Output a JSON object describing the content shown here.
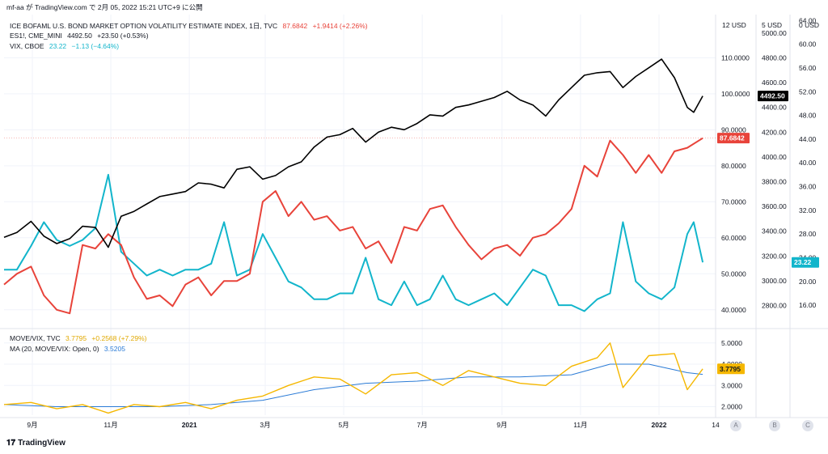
{
  "header": {
    "user": "mf-aa",
    "published_text": "が TradingView.com で 2月 05, 2022 15:21 UTC+9 に公開"
  },
  "legends": [
    {
      "title": "ICE BOFAML U.S. BOND MARKET OPTION VOLATILITY ESTIMATE INDEX, 1日, TVC",
      "value": "87.6842",
      "change": "+1.9414 (+2.26%)",
      "color": "#e8433a"
    },
    {
      "title": "ES1!, CME_MINI",
      "value": "4492.50",
      "change": "+23.50 (+0.53%)",
      "color": "#131722"
    },
    {
      "title": "VIX, CBOE",
      "value": "23.22",
      "change": "−1.13 (−4.64%)",
      "color": "#12b5cb"
    },
    {
      "title": "MOVE/VIX, TVC",
      "value": "3.7795",
      "change": "+0.2568 (+7.29%)",
      "color": "#f5b700"
    },
    {
      "title": "MA (20, MOVE/VIX: Open, 0)",
      "value": "3.5205",
      "change": "",
      "color": "#2b7bd6"
    }
  ],
  "axis_headers": {
    "move": "USD",
    "es": "USD",
    "vix": "USD",
    "move_small": "12",
    "es_small": "5",
    "vix_small": "0"
  },
  "badges": {
    "es": "4492.50",
    "move": "87.6842",
    "vix": "23.22",
    "ratio": "3.7795"
  },
  "colors": {
    "move": "#e8433a",
    "es": "#000000",
    "vix": "#12b5cb",
    "ratio": "#f5b700",
    "ma": "#2b7bd6",
    "grid": "#f0f3fa"
  },
  "scale_buttons": [
    "A",
    "B",
    "C"
  ],
  "brand": "TradingView",
  "chart_data": [
    {
      "type": "line",
      "title": "",
      "x_tick_labels": [
        "9月",
        "11月",
        "2021",
        "3月",
        "5月",
        "7月",
        "9月",
        "11月",
        "2022",
        "14"
      ],
      "x_range": [
        "2020-08-10",
        "2022-02-14"
      ],
      "series": [
        {
          "name": "ICE BOFAML U.S. BOND MARKET OPTION VOLATILITY ESTIMATE INDEX",
          "axis": "move",
          "ylim": [
            35,
            122
          ],
          "ticks": [
            "40.0000",
            "50.0000",
            "60.0000",
            "70.0000",
            "80.0000",
            "90.0000",
            "100.0000",
            "110.0000"
          ],
          "points": [
            [
              "2020-08-10",
              47
            ],
            [
              "2020-08-20",
              50
            ],
            [
              "2020-08-31",
              52
            ],
            [
              "2020-09-10",
              44
            ],
            [
              "2020-09-20",
              40
            ],
            [
              "2020-09-30",
              39
            ],
            [
              "2020-10-10",
              58
            ],
            [
              "2020-10-20",
              57
            ],
            [
              "2020-10-30",
              61
            ],
            [
              "2020-11-09",
              58
            ],
            [
              "2020-11-19",
              49
            ],
            [
              "2020-11-29",
              43
            ],
            [
              "2020-12-09",
              44
            ],
            [
              "2020-12-19",
              41
            ],
            [
              "2020-12-29",
              47
            ],
            [
              "2021-01-08",
              49
            ],
            [
              "2021-01-18",
              44
            ],
            [
              "2021-01-28",
              48
            ],
            [
              "2021-02-07",
              48
            ],
            [
              "2021-02-17",
              50
            ],
            [
              "2021-02-27",
              70
            ],
            [
              "2021-03-09",
              73
            ],
            [
              "2021-03-19",
              66
            ],
            [
              "2021-03-29",
              70
            ],
            [
              "2021-04-08",
              65
            ],
            [
              "2021-04-18",
              66
            ],
            [
              "2021-04-28",
              62
            ],
            [
              "2021-05-08",
              63
            ],
            [
              "2021-05-18",
              57
            ],
            [
              "2021-05-28",
              59
            ],
            [
              "2021-06-07",
              53
            ],
            [
              "2021-06-17",
              63
            ],
            [
              "2021-06-27",
              62
            ],
            [
              "2021-07-07",
              68
            ],
            [
              "2021-07-17",
              69
            ],
            [
              "2021-07-27",
              63
            ],
            [
              "2021-08-06",
              58
            ],
            [
              "2021-08-16",
              54
            ],
            [
              "2021-08-26",
              57
            ],
            [
              "2021-09-05",
              58
            ],
            [
              "2021-09-15",
              55
            ],
            [
              "2021-09-25",
              60
            ],
            [
              "2021-10-05",
              61
            ],
            [
              "2021-10-15",
              64
            ],
            [
              "2021-10-25",
              68
            ],
            [
              "2021-11-04",
              80
            ],
            [
              "2021-11-14",
              77
            ],
            [
              "2021-11-24",
              87
            ],
            [
              "2021-12-04",
              83
            ],
            [
              "2021-12-14",
              78
            ],
            [
              "2021-12-24",
              83
            ],
            [
              "2022-01-03",
              78
            ],
            [
              "2022-01-13",
              84
            ],
            [
              "2022-01-23",
              85
            ],
            [
              "2022-02-04",
              87.68
            ]
          ]
        },
        {
          "name": "ES1!, CME_MINI",
          "axis": "es",
          "ylim": [
            2620,
            5150
          ],
          "ticks": [
            "2800.00",
            "3000.00",
            "3200.00",
            "3400.00",
            "3600.00",
            "3800.00",
            "4000.00",
            "4200.00",
            "4400.00",
            "4600.00",
            "4800.00",
            "5000.00"
          ],
          "points": [
            [
              "2020-08-10",
              3350
            ],
            [
              "2020-08-20",
              3390
            ],
            [
              "2020-08-31",
              3480
            ],
            [
              "2020-09-10",
              3360
            ],
            [
              "2020-09-20",
              3300
            ],
            [
              "2020-09-30",
              3340
            ],
            [
              "2020-10-10",
              3440
            ],
            [
              "2020-10-20",
              3430
            ],
            [
              "2020-10-30",
              3270
            ],
            [
              "2020-11-09",
              3520
            ],
            [
              "2020-11-19",
              3560
            ],
            [
              "2020-11-29",
              3620
            ],
            [
              "2020-12-09",
              3680
            ],
            [
              "2020-12-19",
              3700
            ],
            [
              "2020-12-29",
              3720
            ],
            [
              "2021-01-08",
              3790
            ],
            [
              "2021-01-18",
              3780
            ],
            [
              "2021-01-28",
              3750
            ],
            [
              "2021-02-07",
              3900
            ],
            [
              "2021-02-17",
              3920
            ],
            [
              "2021-02-27",
              3820
            ],
            [
              "2021-03-09",
              3850
            ],
            [
              "2021-03-19",
              3920
            ],
            [
              "2021-03-29",
              3960
            ],
            [
              "2021-04-08",
              4080
            ],
            [
              "2021-04-18",
              4160
            ],
            [
              "2021-04-28",
              4180
            ],
            [
              "2021-05-08",
              4230
            ],
            [
              "2021-05-18",
              4120
            ],
            [
              "2021-05-28",
              4200
            ],
            [
              "2021-06-07",
              4240
            ],
            [
              "2021-06-17",
              4220
            ],
            [
              "2021-06-27",
              4270
            ],
            [
              "2021-07-07",
              4340
            ],
            [
              "2021-07-17",
              4330
            ],
            [
              "2021-07-27",
              4400
            ],
            [
              "2021-08-06",
              4420
            ],
            [
              "2021-08-16",
              4450
            ],
            [
              "2021-08-26",
              4480
            ],
            [
              "2021-09-05",
              4530
            ],
            [
              "2021-09-15",
              4460
            ],
            [
              "2021-09-25",
              4420
            ],
            [
              "2021-10-05",
              4330
            ],
            [
              "2021-10-15",
              4460
            ],
            [
              "2021-10-25",
              4560
            ],
            [
              "2021-11-04",
              4660
            ],
            [
              "2021-11-14",
              4680
            ],
            [
              "2021-11-24",
              4690
            ],
            [
              "2021-12-04",
              4560
            ],
            [
              "2021-12-14",
              4650
            ],
            [
              "2021-12-24",
              4720
            ],
            [
              "2022-01-03",
              4790
            ],
            [
              "2022-01-13",
              4640
            ],
            [
              "2022-01-23",
              4400
            ],
            [
              "2022-01-28",
              4360
            ],
            [
              "2022-02-04",
              4492.5
            ]
          ]
        },
        {
          "name": "VIX, CBOE",
          "axis": "vix",
          "ylim": [
            12.2,
            65
          ],
          "ticks": [
            "16.00",
            "20.00",
            "24.00",
            "28.00",
            "32.00",
            "36.00",
            "40.00",
            "44.00",
            "48.00",
            "52.00",
            "56.00",
            "60.00",
            "64.00"
          ],
          "points": [
            [
              "2020-08-10",
              22
            ],
            [
              "2020-08-20",
              22
            ],
            [
              "2020-08-31",
              26
            ],
            [
              "2020-09-10",
              30
            ],
            [
              "2020-09-20",
              27
            ],
            [
              "2020-09-30",
              26
            ],
            [
              "2020-10-10",
              27
            ],
            [
              "2020-10-20",
              29
            ],
            [
              "2020-10-30",
              38
            ],
            [
              "2020-11-09",
              25
            ],
            [
              "2020-11-19",
              23
            ],
            [
              "2020-11-29",
              21
            ],
            [
              "2020-12-09",
              22
            ],
            [
              "2020-12-19",
              21
            ],
            [
              "2020-12-29",
              22
            ],
            [
              "2021-01-08",
              22
            ],
            [
              "2021-01-18",
              23
            ],
            [
              "2021-01-28",
              30
            ],
            [
              "2021-02-07",
              21
            ],
            [
              "2021-02-17",
              22
            ],
            [
              "2021-02-27",
              28
            ],
            [
              "2021-03-09",
              24
            ],
            [
              "2021-03-19",
              20
            ],
            [
              "2021-03-29",
              19
            ],
            [
              "2021-04-08",
              17
            ],
            [
              "2021-04-18",
              17
            ],
            [
              "2021-04-28",
              18
            ],
            [
              "2021-05-08",
              18
            ],
            [
              "2021-05-18",
              24
            ],
            [
              "2021-05-28",
              17
            ],
            [
              "2021-06-07",
              16
            ],
            [
              "2021-06-17",
              20
            ],
            [
              "2021-06-27",
              16
            ],
            [
              "2021-07-07",
              17
            ],
            [
              "2021-07-17",
              21
            ],
            [
              "2021-07-27",
              17
            ],
            [
              "2021-08-06",
              16
            ],
            [
              "2021-08-16",
              17
            ],
            [
              "2021-08-26",
              18
            ],
            [
              "2021-09-05",
              16
            ],
            [
              "2021-09-15",
              19
            ],
            [
              "2021-09-25",
              22
            ],
            [
              "2021-10-05",
              21
            ],
            [
              "2021-10-15",
              16
            ],
            [
              "2021-10-25",
              16
            ],
            [
              "2021-11-04",
              15
            ],
            [
              "2021-11-14",
              17
            ],
            [
              "2021-11-24",
              18
            ],
            [
              "2021-12-04",
              30
            ],
            [
              "2021-12-14",
              20
            ],
            [
              "2021-12-24",
              18
            ],
            [
              "2022-01-03",
              17
            ],
            [
              "2022-01-13",
              19
            ],
            [
              "2022-01-23",
              28
            ],
            [
              "2022-01-28",
              30
            ],
            [
              "2022-02-04",
              23.22
            ]
          ]
        }
      ]
    },
    {
      "type": "line",
      "title": "",
      "ylim": [
        1.6,
        5.6
      ],
      "ticks": [
        "2.0000",
        "3.0000",
        "4.0000",
        "5.0000"
      ],
      "series": [
        {
          "name": "MOVE/VIX, TVC",
          "points": [
            [
              "2020-08-10",
              2.1
            ],
            [
              "2020-08-31",
              2.2
            ],
            [
              "2020-09-20",
              1.9
            ],
            [
              "2020-10-10",
              2.1
            ],
            [
              "2020-10-30",
              1.7
            ],
            [
              "2020-11-19",
              2.1
            ],
            [
              "2020-12-09",
              2.0
            ],
            [
              "2020-12-29",
              2.2
            ],
            [
              "2021-01-18",
              1.9
            ],
            [
              "2021-02-07",
              2.3
            ],
            [
              "2021-02-27",
              2.5
            ],
            [
              "2021-03-19",
              3.0
            ],
            [
              "2021-04-08",
              3.4
            ],
            [
              "2021-04-28",
              3.3
            ],
            [
              "2021-05-18",
              2.6
            ],
            [
              "2021-06-07",
              3.5
            ],
            [
              "2021-06-27",
              3.6
            ],
            [
              "2021-07-17",
              3.0
            ],
            [
              "2021-08-06",
              3.7
            ],
            [
              "2021-08-26",
              3.4
            ],
            [
              "2021-09-15",
              3.1
            ],
            [
              "2021-10-05",
              3.0
            ],
            [
              "2021-10-25",
              3.9
            ],
            [
              "2021-11-14",
              4.3
            ],
            [
              "2021-11-24",
              5.0
            ],
            [
              "2021-12-04",
              2.9
            ],
            [
              "2021-12-24",
              4.4
            ],
            [
              "2022-01-13",
              4.5
            ],
            [
              "2022-01-23",
              2.8
            ],
            [
              "2022-02-04",
              3.7795
            ]
          ]
        },
        {
          "name": "MA (20, MOVE/VIX: Open, 0)",
          "points": [
            [
              "2020-08-10",
              2.1
            ],
            [
              "2020-09-20",
              2.0
            ],
            [
              "2020-10-30",
              2.0
            ],
            [
              "2020-12-09",
              2.0
            ],
            [
              "2021-01-18",
              2.1
            ],
            [
              "2021-02-27",
              2.3
            ],
            [
              "2021-04-08",
              2.8
            ],
            [
              "2021-05-18",
              3.1
            ],
            [
              "2021-06-27",
              3.2
            ],
            [
              "2021-08-06",
              3.4
            ],
            [
              "2021-09-15",
              3.4
            ],
            [
              "2021-10-25",
              3.5
            ],
            [
              "2021-11-24",
              4.0
            ],
            [
              "2021-12-24",
              4.0
            ],
            [
              "2022-01-23",
              3.6
            ],
            [
              "2022-02-04",
              3.5205
            ]
          ]
        }
      ]
    }
  ]
}
